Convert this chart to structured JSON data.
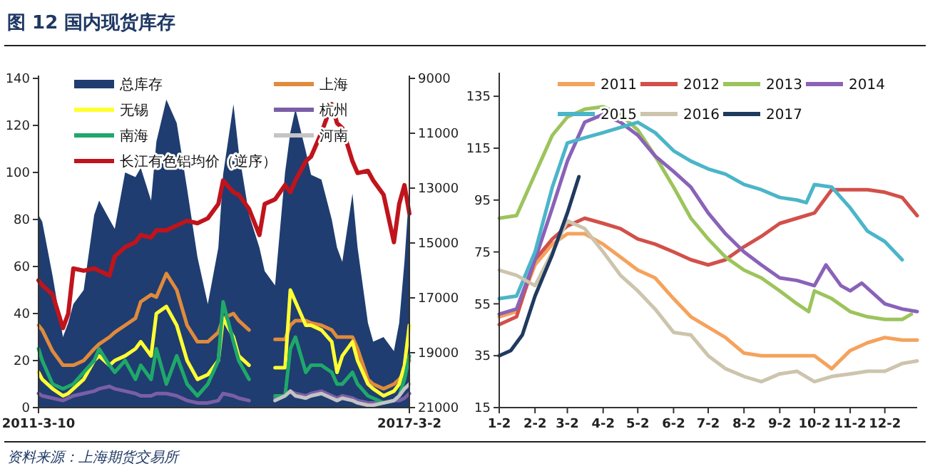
{
  "chart_data": [
    {
      "type": "line",
      "title": "图 12 国内现货库存",
      "annotations": [
        "资料来源：上海期货交易所"
      ],
      "legend": "top",
      "x": [
        "2011-03-10",
        "2011-04",
        "2011-06",
        "2011-08",
        "2011-09",
        "2011-10",
        "2011-12",
        "2012-02",
        "2012-03",
        "2012-05",
        "2012-06",
        "2012-08",
        "2012-10",
        "2012-11",
        "2013-01",
        "2013-02",
        "2013-04",
        "2013-06",
        "2013-08",
        "2013-10",
        "2013-12",
        "2014-02",
        "2014-03",
        "2014-05",
        "2014-06",
        "2014-08",
        "2014-10",
        "2014-11",
        "2015-01",
        "2015-03",
        "2015-04",
        "2015-05",
        "2015-07",
        "2015-08",
        "2015-10",
        "2015-12",
        "2016-01",
        "2016-02",
        "2016-04",
        "2016-05",
        "2016-07",
        "2016-08",
        "2016-10",
        "2016-12",
        "2017-01",
        "2017-02",
        "2017-03-02"
      ],
      "xlim": [
        "2011-03-10",
        "2017-03-02"
      ],
      "xticks": [
        {
          "value": "2011-03-10",
          "label": "2011-3-10"
        },
        {
          "value": "2017-03-02",
          "label": "2017-3-2"
        }
      ],
      "ylim": [
        0,
        140
      ],
      "yticks": [
        0,
        20,
        40,
        60,
        80,
        100,
        120,
        140
      ],
      "y2lim": [
        21000,
        9000
      ],
      "y2ticks": [
        21000,
        19000,
        17000,
        15000,
        13000,
        11000,
        9000
      ],
      "series": [
        {
          "name": "总库存",
          "type": "area",
          "color": "#1f3d70",
          "values": [
            82,
            79,
            56,
            30,
            36,
            44,
            50,
            82,
            88,
            80,
            76,
            100,
            98,
            102,
            88,
            113,
            131,
            121,
            93,
            64,
            44,
            68,
            99,
            129,
            109,
            82,
            68,
            58,
            52,
            100,
            117,
            127,
            109,
            99,
            97,
            80,
            68,
            62,
            91,
            68,
            36,
            28,
            30,
            24,
            36,
            62,
            93
          ]
        },
        {
          "name": "上海",
          "color": "#e08a3c",
          "values": [
            35,
            33,
            24,
            18,
            18,
            18,
            20,
            25,
            27,
            30,
            32,
            35,
            38,
            45,
            48,
            47,
            57,
            50,
            35,
            28,
            28,
            32,
            38,
            40,
            37,
            33,
            null,
            null,
            29,
            29,
            35,
            37,
            37,
            36,
            35,
            33,
            30,
            30,
            30,
            25,
            12,
            10,
            8,
            10,
            12,
            15,
            20
          ]
        },
        {
          "name": "无锡",
          "color": "#ffff33",
          "values": [
            15,
            12,
            8,
            5,
            6,
            8,
            12,
            20,
            22,
            18,
            20,
            22,
            25,
            28,
            22,
            40,
            43,
            35,
            20,
            12,
            14,
            20,
            38,
            30,
            22,
            18,
            null,
            null,
            17,
            17,
            50,
            45,
            35,
            35,
            33,
            28,
            15,
            22,
            28,
            20,
            10,
            8,
            5,
            7,
            10,
            18,
            35
          ]
        },
        {
          "name": "杭州",
          "color": "#7b5ea7",
          "values": [
            6,
            5,
            4,
            3,
            4,
            5,
            6,
            7,
            8,
            9,
            8,
            7,
            6,
            5,
            5,
            6,
            6,
            5,
            3,
            2,
            2,
            3,
            6,
            5,
            4,
            3,
            null,
            null,
            4,
            5,
            7,
            6,
            5,
            6,
            7,
            5,
            4,
            5,
            4,
            3,
            2,
            2,
            2,
            3,
            3,
            4,
            6
          ]
        },
        {
          "name": "南海",
          "color": "#1fa86a",
          "values": [
            25,
            20,
            10,
            8,
            9,
            10,
            15,
            20,
            25,
            18,
            15,
            20,
            12,
            18,
            12,
            25,
            10,
            22,
            10,
            5,
            10,
            20,
            45,
            28,
            20,
            12,
            null,
            null,
            5,
            5,
            25,
            30,
            15,
            18,
            18,
            15,
            10,
            10,
            15,
            10,
            5,
            4,
            2,
            3,
            5,
            12,
            22
          ]
        },
        {
          "name": "河南",
          "color": "#c4c4c4",
          "values": [
            null,
            null,
            null,
            null,
            null,
            null,
            null,
            null,
            null,
            null,
            null,
            null,
            null,
            null,
            null,
            null,
            null,
            null,
            null,
            null,
            null,
            null,
            null,
            null,
            null,
            null,
            null,
            null,
            3,
            5,
            7,
            5,
            4,
            5,
            6,
            4,
            3,
            4,
            3,
            2,
            1,
            1,
            2,
            3,
            5,
            8,
            10
          ]
        },
        {
          "name": "长江有色铝均价（逆序）",
          "axis": "y2",
          "color": "#c0141c",
          "values": [
            16360,
            16540,
            16880,
            18100,
            17580,
            15930,
            16010,
            15930,
            16010,
            16190,
            15490,
            15150,
            14970,
            14710,
            14800,
            14540,
            14540,
            14360,
            14190,
            14280,
            14100,
            13580,
            12720,
            13150,
            13240,
            13760,
            14710,
            13580,
            13410,
            12890,
            13150,
            12720,
            12020,
            11850,
            10980,
            9940,
            10630,
            10810,
            12020,
            12450,
            12370,
            12720,
            13240,
            14970,
            13580,
            12890,
            13930
          ]
        }
      ]
    },
    {
      "type": "line",
      "legend": "top",
      "x": [
        "--01-02",
        "--01-17",
        "--02-02",
        "--02-17",
        "--03-02",
        "--03-17",
        "--04-02",
        "--04-17",
        "--05-02",
        "--05-17",
        "--06-02",
        "--06-17",
        "--07-02",
        "--07-17",
        "--08-02",
        "--08-17",
        "--09-02",
        "--09-17",
        "--10-02",
        "--10-17",
        "--11-02",
        "--11-17",
        "--12-02",
        "--12-17",
        "--12-30"
      ],
      "xlim": [
        "--01-02",
        "--12-30"
      ],
      "xticks": [
        {
          "value": "--01-02",
          "label": "1-2"
        },
        {
          "value": "--02-02",
          "label": "2-2"
        },
        {
          "value": "--03-02",
          "label": "3-2"
        },
        {
          "value": "--04-02",
          "label": "4-2"
        },
        {
          "value": "--05-02",
          "label": "5-2"
        },
        {
          "value": "--06-02",
          "label": "6-2"
        },
        {
          "value": "--07-02",
          "label": "7-2"
        },
        {
          "value": "--08-02",
          "label": "8-2"
        },
        {
          "value": "--09-02",
          "label": "9-2"
        },
        {
          "value": "--10-02",
          "label": "10-2"
        },
        {
          "value": "--11-02",
          "label": "11-2"
        },
        {
          "value": "--12-02",
          "label": "12-2"
        }
      ],
      "ylim": [
        15,
        143
      ],
      "yticks": [
        15,
        35,
        55,
        75,
        95,
        115,
        135
      ],
      "series": [
        {
          "name": "2011",
          "color": "#f5a25c",
          "values": [
            50,
            52,
            70,
            78,
            82,
            82,
            78,
            73,
            68,
            65,
            57,
            50,
            46,
            42,
            36,
            35,
            35,
            35,
            35,
            30,
            37,
            40,
            42,
            41,
            41
          ]
        },
        {
          "name": "2012",
          "color": "#d2504a",
          "values": [
            47,
            50,
            72,
            80,
            85,
            88,
            86,
            84,
            80,
            78,
            75,
            72,
            70,
            72,
            77,
            81,
            86,
            88,
            90,
            99,
            99,
            99,
            98,
            96,
            89
          ]
        },
        {
          "name": "2013",
          "color": "#9cc45c",
          "x": [
            "--01-02",
            "--01-17",
            "--02-02",
            "--02-17",
            "--03-02",
            "--03-17",
            "--04-02",
            "--04-17",
            "--05-02",
            "--05-17",
            "--06-02",
            "--06-17",
            "--07-02",
            "--07-17",
            "--08-02",
            "--08-17",
            "--09-02",
            "--09-17",
            "--09-27",
            "--10-02",
            "--10-17",
            "--11-02",
            "--11-17",
            "--12-02",
            "--12-17",
            "--12-25"
          ],
          "values": [
            88,
            89,
            105,
            120,
            127,
            130,
            131,
            128,
            122,
            112,
            100,
            88,
            80,
            73,
            68,
            65,
            60,
            55,
            52,
            60,
            57,
            52,
            50,
            49,
            49,
            51
          ]
        },
        {
          "name": "2014",
          "color": "#8a62b8",
          "x": [
            "--01-02",
            "--01-17",
            "--02-02",
            "--02-17",
            "--03-02",
            "--03-17",
            "--04-02",
            "--04-17",
            "--05-02",
            "--05-17",
            "--06-02",
            "--06-17",
            "--07-02",
            "--07-17",
            "--08-02",
            "--08-17",
            "--09-02",
            "--09-17",
            "--10-02",
            "--10-12",
            "--10-25",
            "--11-02",
            "--11-12",
            "--12-02",
            "--12-17",
            "--12-30"
          ],
          "values": [
            51,
            53,
            72,
            92,
            110,
            125,
            128,
            125,
            120,
            112,
            106,
            100,
            90,
            82,
            75,
            70,
            65,
            64,
            62,
            70,
            62,
            60,
            63,
            55,
            53,
            52
          ]
        },
        {
          "name": "2015",
          "color": "#4bb5c9",
          "x": [
            "--01-02",
            "--01-17",
            "--02-02",
            "--02-17",
            "--03-02",
            "--03-17",
            "--04-02",
            "--04-17",
            "--05-02",
            "--05-17",
            "--06-02",
            "--06-17",
            "--07-02",
            "--07-17",
            "--08-02",
            "--08-17",
            "--09-02",
            "--09-17",
            "--09-25",
            "--10-02",
            "--10-17",
            "--11-02",
            "--11-17",
            "--12-02",
            "--12-17"
          ],
          "values": [
            57,
            58,
            75,
            100,
            117,
            119,
            121,
            123,
            125,
            121,
            114,
            110,
            107,
            105,
            101,
            99,
            96,
            95,
            94,
            101,
            100,
            92,
            83,
            79,
            72
          ]
        },
        {
          "name": "2016",
          "color": "#cdc4ad",
          "values": [
            68,
            66,
            62,
            75,
            87,
            84,
            75,
            66,
            60,
            53,
            44,
            43,
            35,
            30,
            27,
            25,
            28,
            29,
            25,
            27,
            28,
            29,
            29,
            32,
            33
          ]
        },
        {
          "name": "2017",
          "color": "#1f3a5f",
          "x": [
            "--01-02",
            "--01-12",
            "--01-22",
            "--02-02",
            "--02-17",
            "--03-02",
            "--03-12"
          ],
          "values": [
            35,
            37,
            43,
            58,
            74,
            90,
            104
          ]
        }
      ]
    }
  ]
}
